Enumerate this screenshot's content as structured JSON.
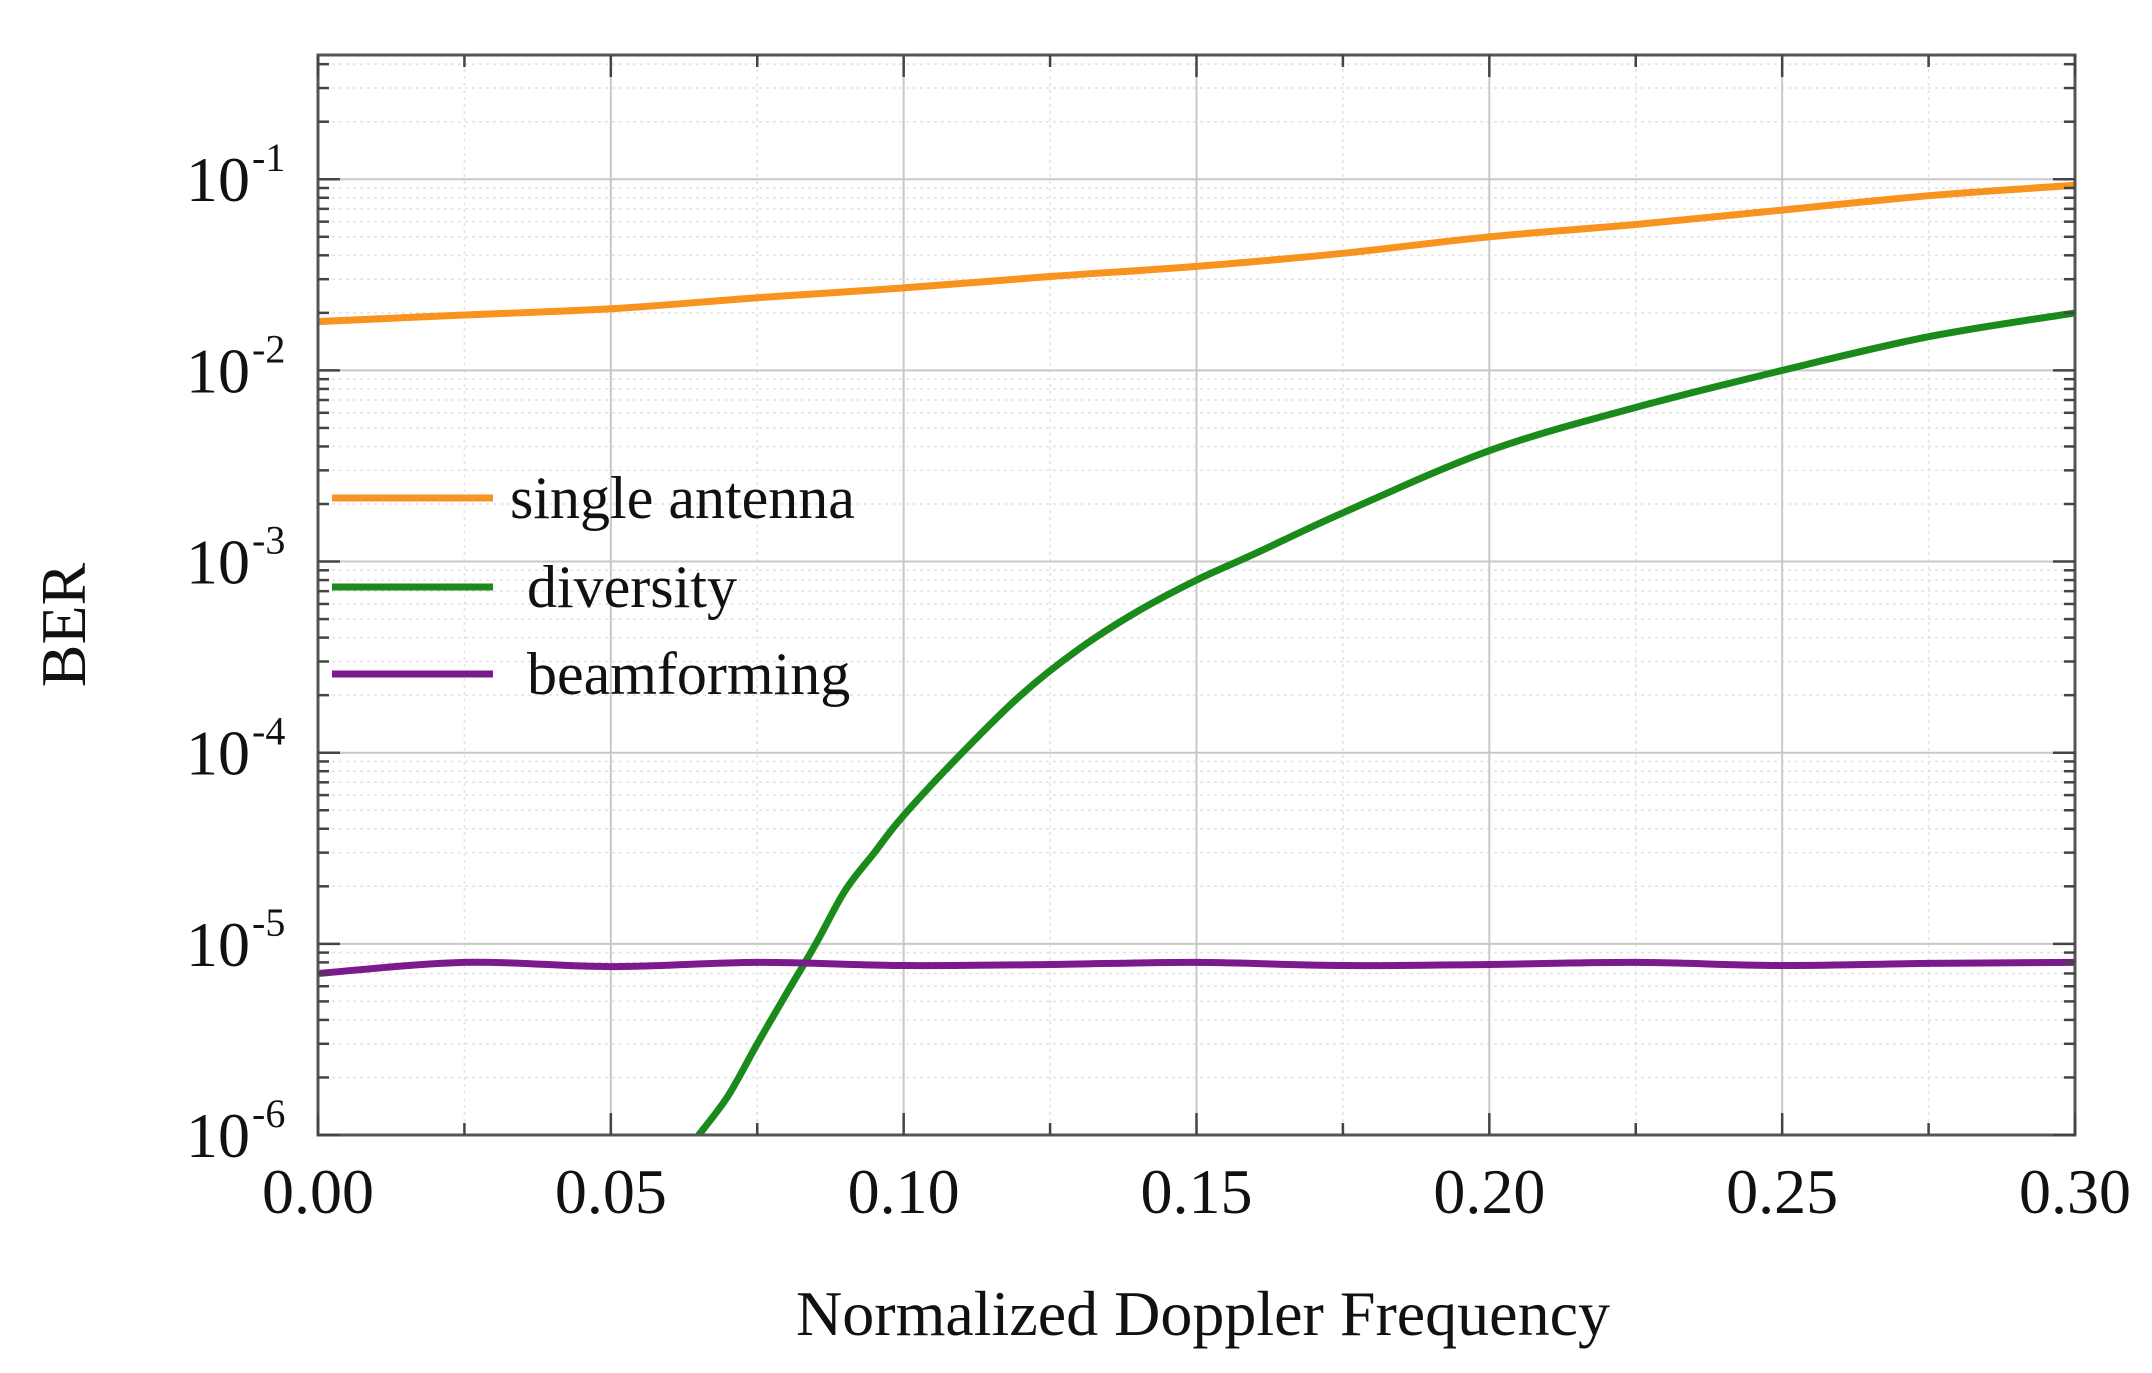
{
  "chart_data": {
    "type": "line",
    "title": "",
    "xlabel": "Normalized Doppler Frequency",
    "ylabel": "BER",
    "xlim": [
      0.0,
      0.3
    ],
    "ylim_log10": [
      -6,
      -0.35
    ],
    "yscale": "log",
    "grid": true,
    "legend_position": "middle-left",
    "x_ticks": [
      {
        "value": 0.0,
        "label": "0.00"
      },
      {
        "value": 0.05,
        "label": "0.05"
      },
      {
        "value": 0.1,
        "label": "0.10"
      },
      {
        "value": 0.15,
        "label": "0.15"
      },
      {
        "value": 0.2,
        "label": "0.20"
      },
      {
        "value": 0.25,
        "label": "0.25"
      },
      {
        "value": 0.3,
        "label": "0.30"
      }
    ],
    "y_ticks": [
      {
        "exp": -1,
        "base": "10",
        "sup": "-1"
      },
      {
        "exp": -2,
        "base": "10",
        "sup": "-2"
      },
      {
        "exp": -3,
        "base": "10",
        "sup": "-3"
      },
      {
        "exp": -4,
        "base": "10",
        "sup": "-4"
      },
      {
        "exp": -5,
        "base": "10",
        "sup": "-5"
      },
      {
        "exp": -6,
        "base": "10",
        "sup": "-6"
      }
    ],
    "series": [
      {
        "name": "single antenna",
        "color": "#f7931e",
        "x": [
          0.0,
          0.025,
          0.05,
          0.075,
          0.1,
          0.125,
          0.15,
          0.175,
          0.2,
          0.225,
          0.25,
          0.275,
          0.3
        ],
        "y": [
          0.018,
          0.0195,
          0.021,
          0.024,
          0.027,
          0.031,
          0.035,
          0.041,
          0.05,
          0.058,
          0.069,
          0.082,
          0.093
        ]
      },
      {
        "name": "diversity",
        "color": "#1a8a1a",
        "x": [
          0.065,
          0.07,
          0.075,
          0.08,
          0.085,
          0.09,
          0.095,
          0.1,
          0.11,
          0.12,
          0.13,
          0.14,
          0.15,
          0.16,
          0.175,
          0.2,
          0.225,
          0.25,
          0.275,
          0.3
        ],
        "y": [
          1e-06,
          1.6e-06,
          3e-06,
          5.5e-06,
          1e-05,
          1.9e-05,
          3e-05,
          4.7e-05,
          0.0001,
          0.0002,
          0.00035,
          0.00055,
          0.0008,
          0.0011,
          0.0018,
          0.0038,
          0.0064,
          0.01,
          0.015,
          0.02
        ]
      },
      {
        "name": "beamforming",
        "color": "#7b1a8c",
        "x": [
          0.0,
          0.025,
          0.05,
          0.075,
          0.1,
          0.125,
          0.15,
          0.175,
          0.2,
          0.225,
          0.25,
          0.275,
          0.3
        ],
        "y": [
          7e-06,
          8e-06,
          7.6e-06,
          8e-06,
          7.7e-06,
          7.8e-06,
          8e-06,
          7.7e-06,
          7.8e-06,
          8e-06,
          7.7e-06,
          7.9e-06,
          8e-06
        ]
      }
    ]
  }
}
